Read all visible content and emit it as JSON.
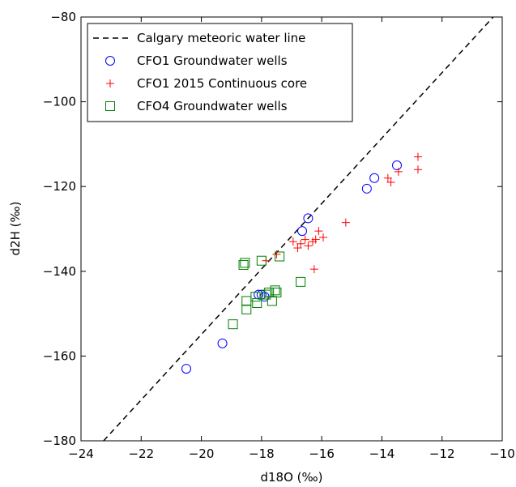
{
  "chart_data": {
    "type": "scatter",
    "xlabel": "d18O (‰)",
    "ylabel": "d2H (‰)",
    "xlim": [
      -24,
      -10
    ],
    "ylim": [
      -180,
      -80
    ],
    "xticks": [
      -24,
      -22,
      -20,
      -18,
      -16,
      -14,
      -12,
      -10
    ],
    "yticks": [
      -180,
      -160,
      -140,
      -120,
      -100,
      -80
    ],
    "grid": false,
    "legend_position": "top-left",
    "line": {
      "name": "Calgary meteoric water line",
      "style": "dashed",
      "color": "#000000",
      "points": [
        [
          -23.25,
          -180
        ],
        [
          -10.3,
          -80
        ]
      ]
    },
    "series": [
      {
        "name": "CFO1 Groundwater wells",
        "marker": "circle",
        "color": "#0000ff",
        "points": [
          [
            -20.5,
            -163
          ],
          [
            -19.3,
            -157
          ],
          [
            -18.1,
            -145.5
          ],
          [
            -18.0,
            -145.5
          ],
          [
            -17.9,
            -146
          ],
          [
            -16.65,
            -130.5
          ],
          [
            -16.45,
            -127.5
          ],
          [
            -14.5,
            -120.5
          ],
          [
            -14.25,
            -118
          ],
          [
            -13.5,
            -115
          ]
        ]
      },
      {
        "name": "CFO1 2015 Continuous core",
        "marker": "plus",
        "color": "#ff0000",
        "points": [
          [
            -17.85,
            -137.5
          ],
          [
            -17.5,
            -136
          ],
          [
            -16.95,
            -133
          ],
          [
            -16.8,
            -134.5
          ],
          [
            -16.7,
            -133.5
          ],
          [
            -16.55,
            -132.5
          ],
          [
            -16.45,
            -134
          ],
          [
            -16.3,
            -133
          ],
          [
            -16.2,
            -132.5
          ],
          [
            -16.1,
            -130.5
          ],
          [
            -15.95,
            -132
          ],
          [
            -16.25,
            -139.5
          ],
          [
            -15.2,
            -128.5
          ],
          [
            -13.8,
            -118
          ],
          [
            -13.7,
            -119
          ],
          [
            -13.45,
            -116.5
          ],
          [
            -12.8,
            -113
          ],
          [
            -12.8,
            -116
          ]
        ]
      },
      {
        "name": "CFO4 Groundwater wells",
        "marker": "square",
        "color": "#008000",
        "points": [
          [
            -18.95,
            -152.5
          ],
          [
            -18.6,
            -138.5
          ],
          [
            -18.55,
            -138
          ],
          [
            -18.5,
            -147
          ],
          [
            -18.5,
            -149
          ],
          [
            -18.2,
            -146
          ],
          [
            -18.15,
            -147.5
          ],
          [
            -18.0,
            -137.5
          ],
          [
            -17.85,
            -145.5
          ],
          [
            -17.75,
            -145
          ],
          [
            -17.65,
            -147
          ],
          [
            -17.55,
            -144.5
          ],
          [
            -17.5,
            -145
          ],
          [
            -17.4,
            -136.5
          ],
          [
            -16.7,
            -142.5
          ]
        ]
      }
    ]
  }
}
